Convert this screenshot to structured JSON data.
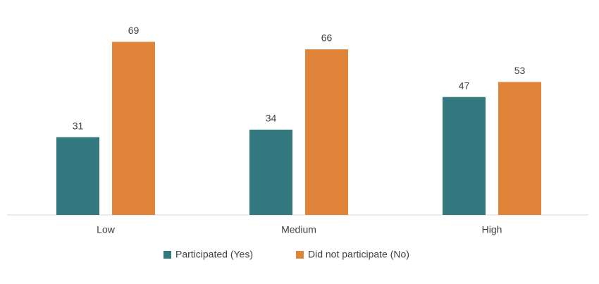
{
  "chart_data": {
    "type": "bar",
    "categories": [
      "Low",
      "Medium",
      "High"
    ],
    "series": [
      {
        "name": "Participated (Yes)",
        "color": "#347880",
        "values": [
          31,
          34,
          47
        ]
      },
      {
        "name": "Did not participate (No)",
        "color": "#e0843a",
        "values": [
          69,
          66,
          53
        ]
      }
    ],
    "ylim": [
      0,
      75
    ],
    "legend": "bottom"
  }
}
